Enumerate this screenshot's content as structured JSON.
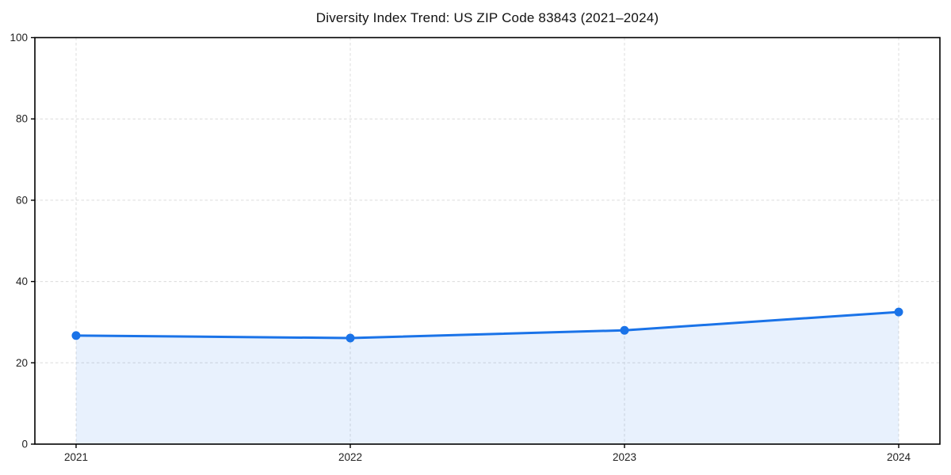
{
  "figure": {
    "background": "#ffffff"
  },
  "chart_data": {
    "type": "area",
    "title": "Diversity Index Trend: US ZIP Code 83843 (2021–2024)",
    "categories": [
      "2021",
      "2022",
      "2023",
      "2024"
    ],
    "series": [
      {
        "name": "Diversity Index",
        "values": [
          26.7,
          26.1,
          28.0,
          32.5
        ]
      }
    ],
    "xlabel": "",
    "ylabel": "",
    "ylim": [
      0,
      100
    ],
    "yticks": [
      0,
      20,
      40,
      60,
      80,
      100
    ],
    "grid": "dashed-both-axes",
    "legend_position": "none",
    "line_color": "#1a73e8",
    "marker_color": "#1a73e8",
    "fill_color": "rgba(26,115,232,0.10)",
    "grid_color": "#dcdcdc",
    "axis_color": "#000000",
    "tick_label_color": "#222222",
    "marker_shape": "circle"
  }
}
